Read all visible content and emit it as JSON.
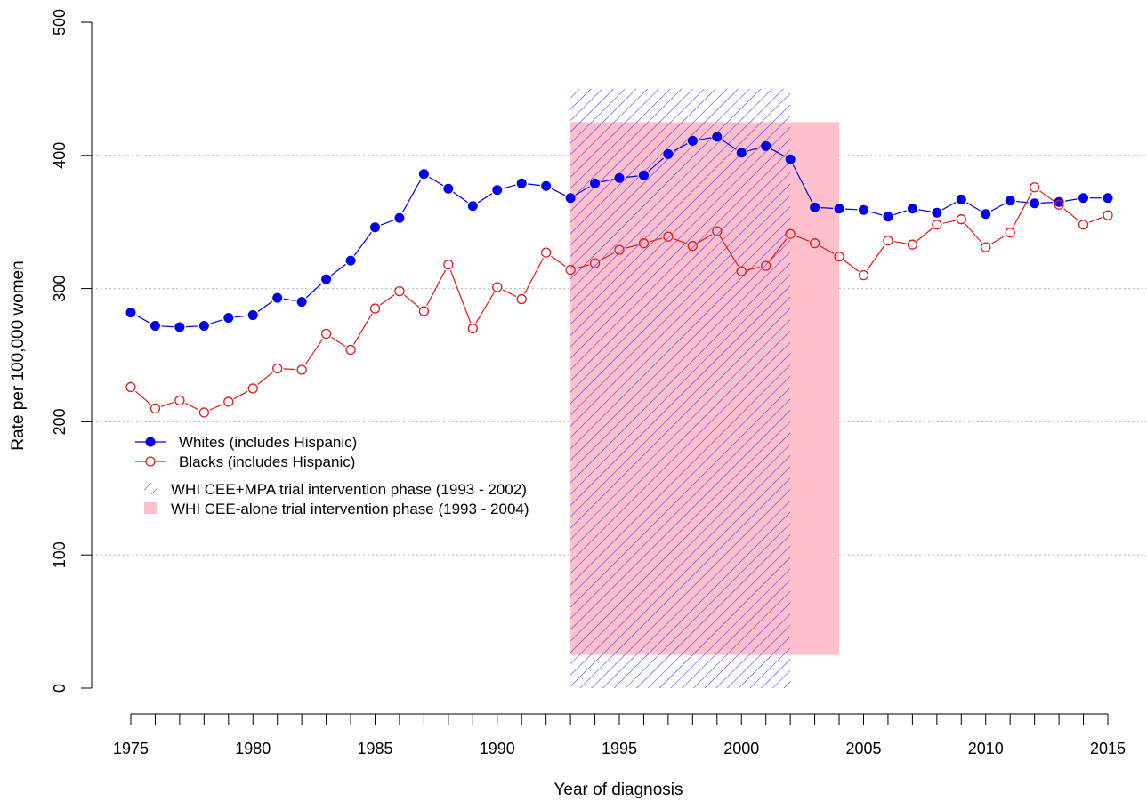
{
  "chart_data": {
    "type": "line",
    "xlabel": "Year of diagnosis",
    "ylabel": "Rate per 100,000 women",
    "xlim": [
      1975,
      2015
    ],
    "ylim": [
      0,
      500
    ],
    "x_ticks": [
      1975,
      1980,
      1985,
      1990,
      1995,
      2000,
      2005,
      2010,
      2015
    ],
    "y_ticks": [
      0,
      100,
      200,
      300,
      400,
      500
    ],
    "grid": "horizontal dotted at 100, 200, 300, 400",
    "x": [
      1975,
      1976,
      1977,
      1978,
      1979,
      1980,
      1981,
      1982,
      1983,
      1984,
      1985,
      1986,
      1987,
      1988,
      1989,
      1990,
      1991,
      1992,
      1993,
      1994,
      1995,
      1996,
      1997,
      1998,
      1999,
      2000,
      2001,
      2002,
      2003,
      2004,
      2005,
      2006,
      2007,
      2008,
      2009,
      2010,
      2011,
      2012,
      2013,
      2014,
      2015
    ],
    "series": [
      {
        "name": "Whites (includes Hispanic)",
        "color": "#0000ee",
        "marker": "filled-circle",
        "values": [
          282,
          272,
          271,
          272,
          278,
          280,
          293,
          290,
          307,
          321,
          346,
          353,
          386,
          375,
          362,
          374,
          379,
          377,
          368,
          379,
          383,
          385,
          401,
          411,
          414,
          402,
          407,
          397,
          361,
          360,
          359,
          354,
          360,
          357,
          367,
          356,
          366,
          364,
          365,
          368,
          368
        ]
      },
      {
        "name": "Blacks (includes Hispanic)",
        "color": "#e31a1c",
        "marker": "open-circle",
        "values": [
          226,
          210,
          216,
          207,
          215,
          225,
          240,
          239,
          266,
          254,
          285,
          298,
          283,
          318,
          270,
          301,
          292,
          327,
          314,
          319,
          329,
          334,
          339,
          332,
          343,
          313,
          317,
          341,
          334,
          324,
          310,
          336,
          333,
          348,
          352,
          331,
          342,
          376,
          363,
          348,
          355
        ]
      }
    ],
    "shaded_regions": [
      {
        "label": "WHI CEE+MPA trial intervention phase (1993 - 2002)",
        "x_start": 1993,
        "x_end": 2002,
        "y_low": 0,
        "y_high": 450,
        "fill": "hatch",
        "color": "#3333ff"
      },
      {
        "label": "WHI CEE-alone trial intervention phase (1993 - 2004)",
        "x_start": 1993,
        "x_end": 2004,
        "y_low": 25,
        "y_high": 425,
        "fill": "solid",
        "color": "#ffc0cb"
      }
    ],
    "legend_placement": "left-center"
  }
}
